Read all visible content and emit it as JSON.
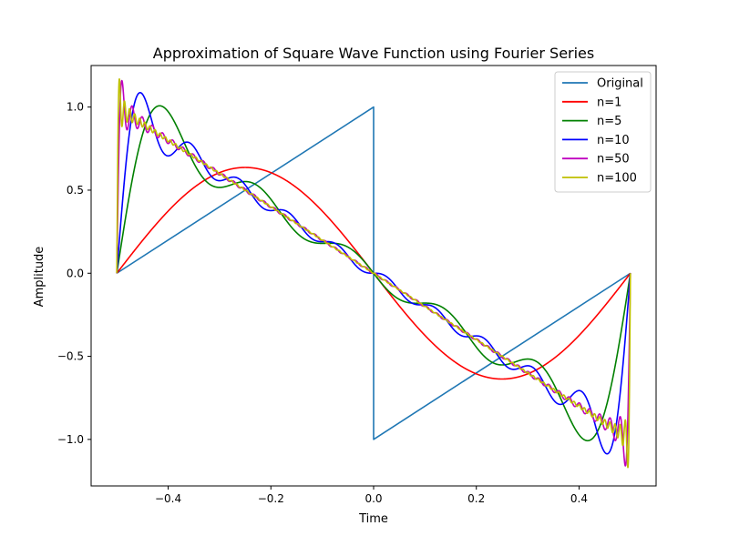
{
  "chart_data": {
    "type": "line",
    "title": "Approximation of Square Wave Function using Fourier Series",
    "xlabel": "Time",
    "ylabel": "Amplitude",
    "xlim": [
      -0.55,
      0.55
    ],
    "ylim": [
      -1.28,
      1.25
    ],
    "x_ticks": [
      -0.4,
      -0.2,
      0.0,
      0.2,
      0.4
    ],
    "x_tick_labels": [
      "−0.4",
      "−0.2",
      "0.0",
      "0.2",
      "0.4"
    ],
    "y_ticks": [
      -1.0,
      -0.5,
      0.0,
      0.5,
      1.0
    ],
    "y_tick_labels": [
      "−1.0",
      "−0.5",
      "0.0",
      "0.5",
      "1.0"
    ],
    "grid": false,
    "legend_position": "top-right",
    "series": [
      {
        "name": "Original",
        "color": "#1f77b4",
        "terms": 0
      },
      {
        "name": "n=1",
        "color": "#ff0000",
        "terms": 1
      },
      {
        "name": "n=5",
        "color": "#008000",
        "terms": 5
      },
      {
        "name": "n=10",
        "color": "#0000ff",
        "terms": 10
      },
      {
        "name": "n=50",
        "color": "#bf00bf",
        "terms": 50
      },
      {
        "name": "n=100",
        "color": "#bfbf00",
        "terms": 100
      }
    ]
  }
}
